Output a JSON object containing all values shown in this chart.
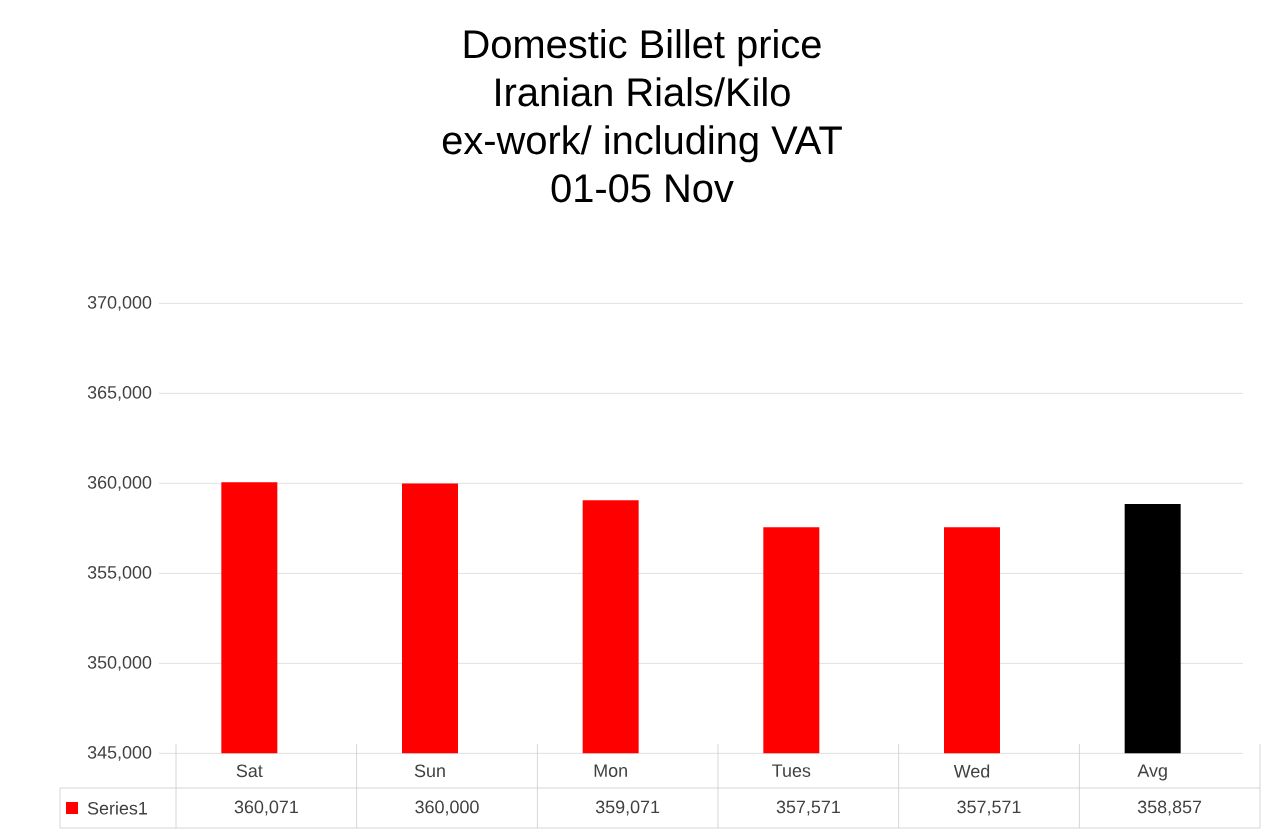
{
  "chart_data": {
    "type": "bar",
    "title": "Domestic  Billet price",
    "subtitle": "Iranian Rials/Kilo",
    "annotations": [
      "ex-work/ including VAT",
      "01-05 Nov"
    ],
    "categories": [
      "Sat",
      "Sun",
      "Mon",
      "Tues",
      "Wed",
      "Avg"
    ],
    "series": [
      {
        "name": "Series1",
        "colors": [
          "#ff0000",
          "#ff0000",
          "#ff0000",
          "#ff0000",
          "#ff0000",
          "#000000"
        ],
        "values": [
          360071,
          360000,
          359071,
          357571,
          357571,
          358857
        ]
      }
    ],
    "value_labels": [
      "360,071",
      "360,000",
      "359,071",
      "357,571",
      "357,571",
      "358,857"
    ],
    "ylim": [
      345000,
      370000
    ],
    "yticks": [
      {
        "value": 345000,
        "label": "345,000"
      },
      {
        "value": 350000,
        "label": "350,000"
      },
      {
        "value": 355000,
        "label": "355,000"
      },
      {
        "value": 360000,
        "label": "360,000"
      },
      {
        "value": 365000,
        "label": "365,000"
      },
      {
        "value": 370000,
        "label": "370,000"
      }
    ],
    "grid": "y"
  }
}
